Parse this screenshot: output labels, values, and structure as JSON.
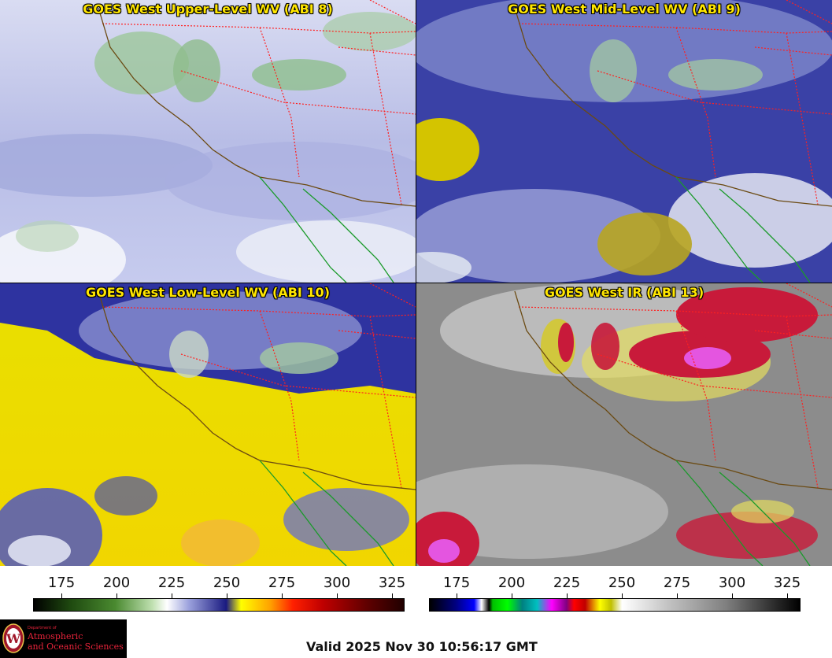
{
  "panels": [
    {
      "id": "upper",
      "title": "GOES West Upper-Level WV (ABI 8)"
    },
    {
      "id": "mid",
      "title": "GOES West Mid-Level WV (ABI 9)"
    },
    {
      "id": "low",
      "title": "GOES West Low-Level WV (ABI 10)"
    },
    {
      "id": "ir",
      "title": "GOES West IR (ABI 13)"
    }
  ],
  "colorbars": {
    "wv": {
      "ticks": [
        "175",
        "200",
        "225",
        "250",
        "275",
        "300",
        "325"
      ]
    },
    "ir": {
      "ticks": [
        "175",
        "200",
        "225",
        "250",
        "275",
        "300",
        "325"
      ]
    }
  },
  "logo": {
    "dept": "Department of",
    "line1": "Atmospheric",
    "line2": "and Oceanic Sciences",
    "seal_letter": "W"
  },
  "valid_time": "Valid 2025 Nov 30 10:56:17 GMT",
  "colors": {
    "title": "#ffe600",
    "border_state": "#ff2020",
    "coast": "#6b4a12",
    "mexico_coast": "#1a9a2a"
  }
}
